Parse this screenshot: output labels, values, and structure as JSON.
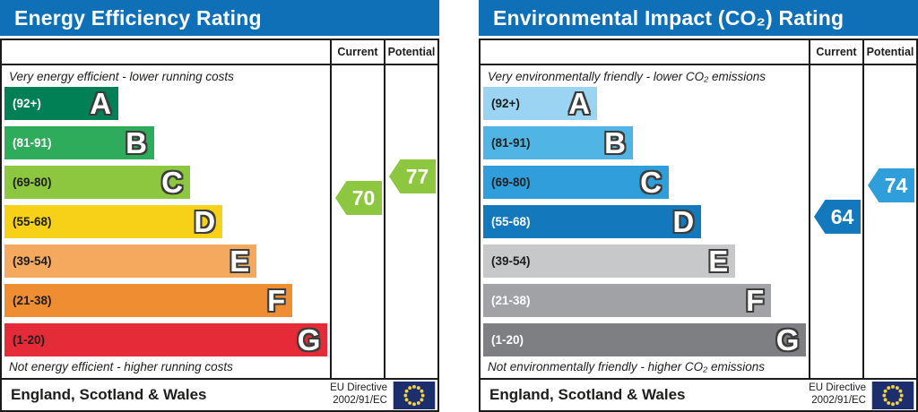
{
  "colors": {
    "header_bg": "#0f70b8",
    "table_border": "#1a1a1a",
    "flag_navy": "#1c2e6e",
    "flag_star": "#f6d33c"
  },
  "chart_data": [
    {
      "type": "bar",
      "title": "Energy Efficiency Rating",
      "top_caption": "Very energy efficient - lower running costs",
      "bottom_caption": "Not energy efficient - higher running costs",
      "categories": [
        "A",
        "B",
        "C",
        "D",
        "E",
        "F",
        "G"
      ],
      "bands": [
        {
          "letter": "A",
          "range": "(92+)",
          "color": "#008054",
          "width_pct": 35,
          "label_color": "#ffffff"
        },
        {
          "letter": "B",
          "range": "(81-91)",
          "color": "#2eac5b",
          "width_pct": 46,
          "label_color": "#ffffff"
        },
        {
          "letter": "C",
          "range": "(69-80)",
          "color": "#8dc63f",
          "width_pct": 57,
          "label_color": "#1d1d1b"
        },
        {
          "letter": "D",
          "range": "(55-68)",
          "color": "#f7d117",
          "width_pct": 67,
          "label_color": "#1d1d1b"
        },
        {
          "letter": "E",
          "range": "(39-54)",
          "color": "#f5a95f",
          "width_pct": 77.5,
          "label_color": "#1d1d1b"
        },
        {
          "letter": "F",
          "range": "(21-38)",
          "color": "#ef8d33",
          "width_pct": 88.5,
          "label_color": "#1d1d1b"
        },
        {
          "letter": "G",
          "range": "(1-20)",
          "color": "#e52a38",
          "width_pct": 99.3,
          "label_color": "#1d1d1b"
        }
      ],
      "current": {
        "label": "Current",
        "value": 70,
        "color": "#8dc63f"
      },
      "potential": {
        "label": "Potential",
        "value": 77,
        "color": "#8dc63f"
      },
      "footer_region": "England, Scotland & Wales",
      "footer_directive": [
        "EU Directive",
        "2002/91/EC"
      ]
    },
    {
      "type": "bar",
      "title": "Environmental Impact (CO₂) Rating",
      "top_caption": "Very environmentally friendly - lower CO₂ emissions",
      "bottom_caption": "Not environmentally friendly - higher CO₂ emissions",
      "categories": [
        "A",
        "B",
        "C",
        "D",
        "E",
        "F",
        "G"
      ],
      "bands": [
        {
          "letter": "A",
          "range": "(92+)",
          "color": "#9bd4f3",
          "width_pct": 35,
          "label_color": "#1d1d1b"
        },
        {
          "letter": "B",
          "range": "(81-91)",
          "color": "#50b5e4",
          "width_pct": 46,
          "label_color": "#1d1d1b"
        },
        {
          "letter": "C",
          "range": "(69-80)",
          "color": "#2f9edb",
          "width_pct": 57,
          "label_color": "#1d1d1b"
        },
        {
          "letter": "D",
          "range": "(55-68)",
          "color": "#1478bd",
          "width_pct": 67,
          "label_color": "#ffffff"
        },
        {
          "letter": "E",
          "range": "(39-54)",
          "color": "#c7c8ca",
          "width_pct": 77.5,
          "label_color": "#1d1d1b"
        },
        {
          "letter": "F",
          "range": "(21-38)",
          "color": "#a0a2a5",
          "width_pct": 88.5,
          "label_color": "#ffffff"
        },
        {
          "letter": "G",
          "range": "(1-20)",
          "color": "#7d7f83",
          "width_pct": 99.3,
          "label_color": "#ffffff"
        }
      ],
      "current": {
        "label": "Current",
        "value": 64,
        "color": "#1478bd"
      },
      "potential": {
        "label": "Potential",
        "value": 74,
        "color": "#2f9edb"
      },
      "footer_region": "England, Scotland & Wales",
      "footer_directive": [
        "EU Directive",
        "2002/91/EC"
      ]
    }
  ]
}
